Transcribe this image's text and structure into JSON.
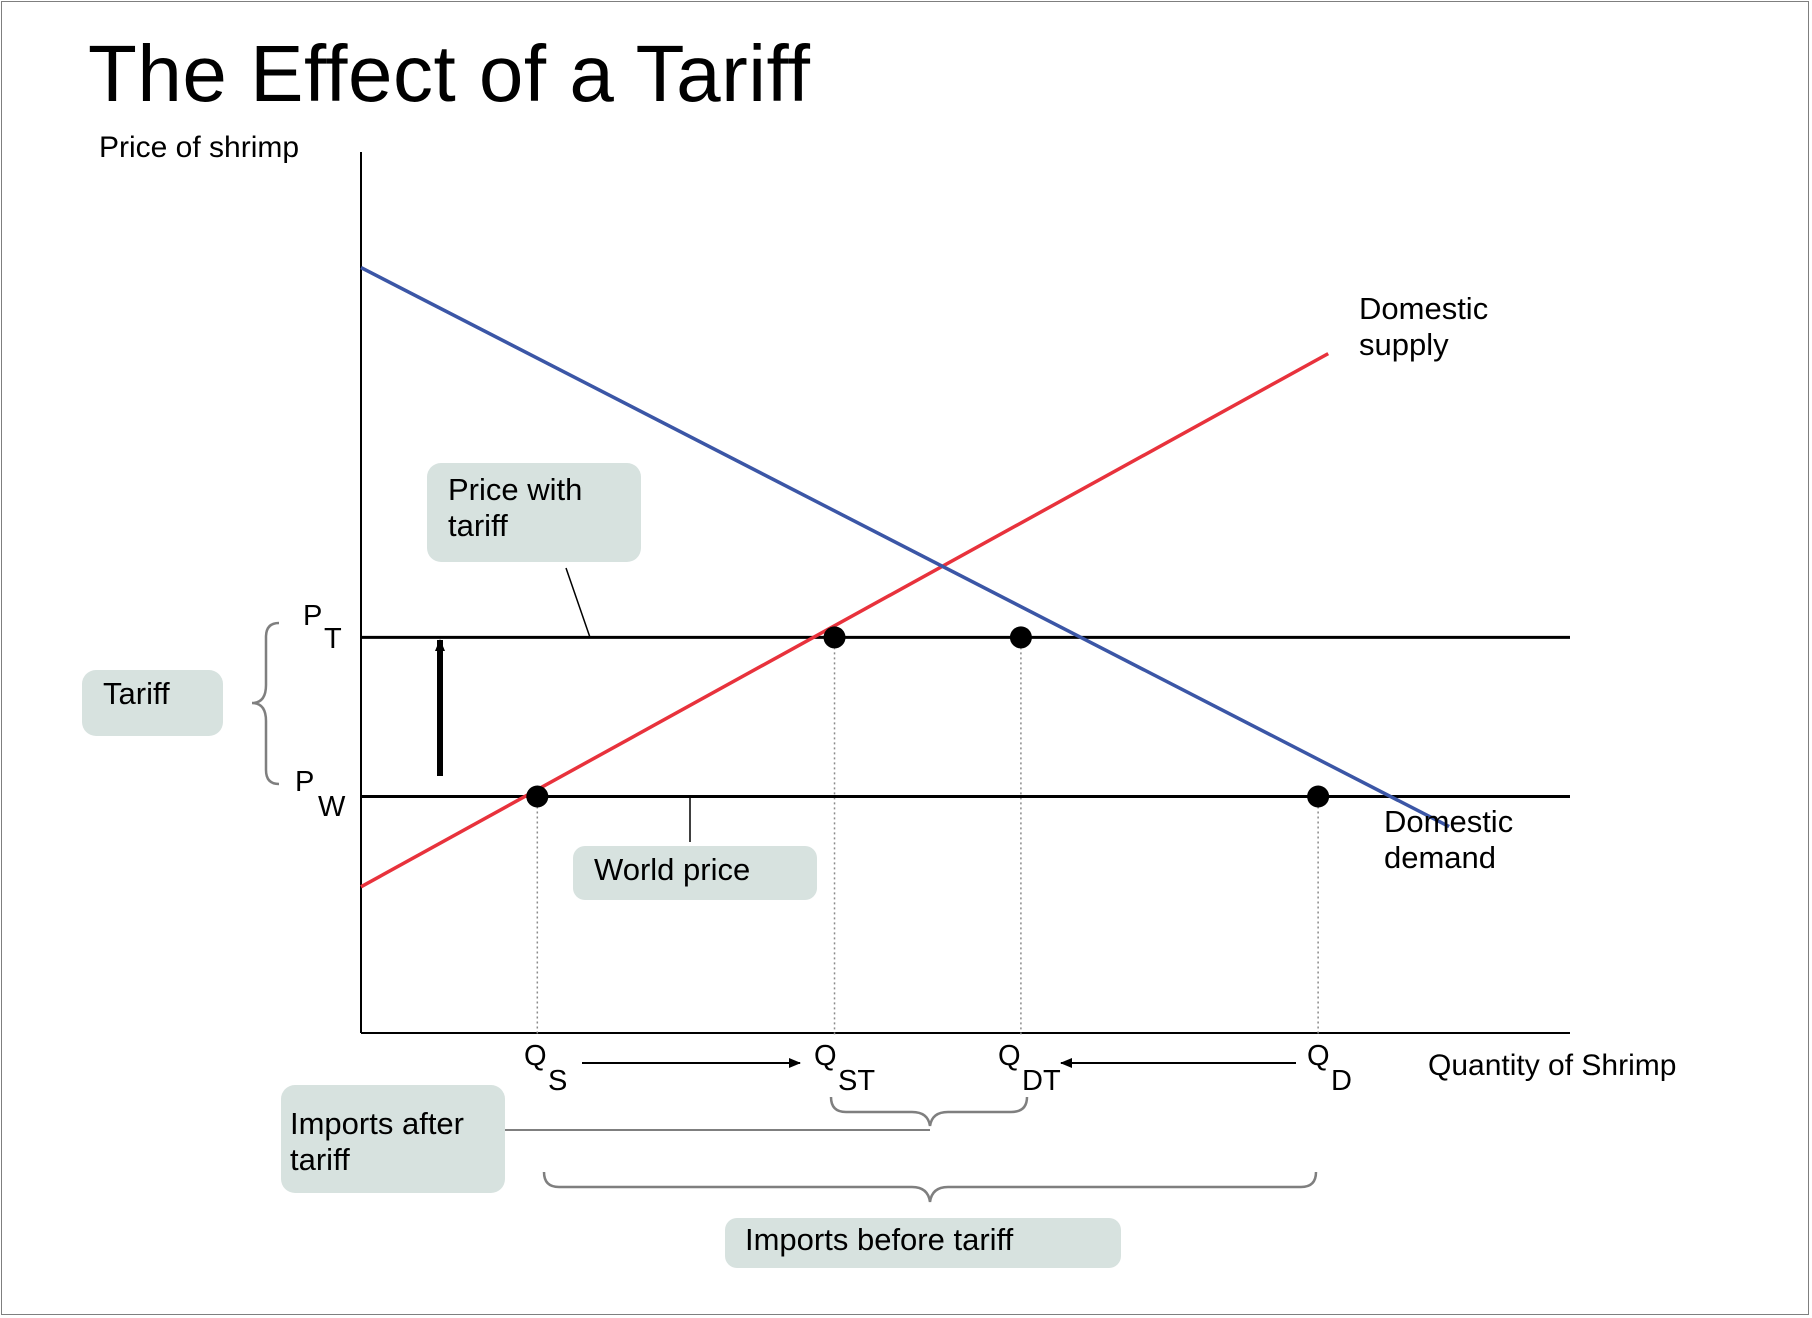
{
  "title": "The Effect of a Tariff",
  "colors": {
    "demand": "#3b56a6",
    "supply": "#e8323c",
    "callout_bg": "#d7e2df",
    "axis": "#000000"
  },
  "chart_data": {
    "type": "line",
    "title": "The Effect of a Tariff",
    "ylabel": "Price of shrimp",
    "xlabel": "Quantity of Shrimp",
    "xlim": [
      0,
      12
    ],
    "ylim": [
      0,
      10
    ],
    "grid": false,
    "axis_ticks": "none",
    "series": [
      {
        "name": "Domestic supply",
        "color": "#e8323c",
        "points": [
          [
            0,
            1.7
          ],
          [
            9.6,
            7.9
          ]
        ]
      },
      {
        "name": "Domestic demand",
        "color": "#3b56a6",
        "points": [
          [
            0,
            8.9
          ],
          [
            10.8,
            2.4
          ]
        ]
      }
    ],
    "price_lines": [
      {
        "label": "Price with tariff",
        "tick_main": "P",
        "tick_sub": "T",
        "y": 4.6
      },
      {
        "label": "World price",
        "tick_main": "P",
        "tick_sub": "W",
        "y": 2.75
      }
    ],
    "quantity_markers": [
      {
        "main": "Q",
        "sub": "S",
        "x": 1.75
      },
      {
        "main": "Q",
        "sub": "ST",
        "x": 4.7
      },
      {
        "main": "Q",
        "sub": "DT",
        "x": 6.55
      },
      {
        "main": "Q",
        "sub": "D",
        "x": 9.5
      }
    ],
    "points": [
      {
        "x": 1.75,
        "y": 2.75
      },
      {
        "x": 4.7,
        "y": 4.6
      },
      {
        "x": 6.55,
        "y": 4.6
      },
      {
        "x": 9.5,
        "y": 2.75
      }
    ],
    "annotations": {
      "tariff": "Tariff",
      "price_with_tariff": [
        "Price with",
        "tariff"
      ],
      "world_price": "World price",
      "imports_after": [
        "Imports after",
        "tariff"
      ],
      "imports_before": "Imports before tariff",
      "supply_label": [
        "Domestic",
        "supply"
      ],
      "demand_label": [
        "Domestic",
        "demand"
      ]
    }
  }
}
